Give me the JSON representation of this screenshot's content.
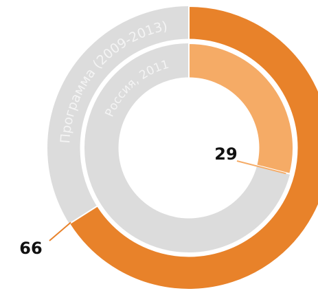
{
  "chart_data": {
    "type": "nested-donut",
    "rings": [
      {
        "name": "Программа (2009-2013)",
        "value": 66,
        "color": "#e8822a",
        "rest_color": "#dcdcdc"
      },
      {
        "name": "Россия, 2011",
        "value": 29,
        "color": "#f5ab66",
        "rest_color": "#dcdcdc"
      }
    ]
  }
}
